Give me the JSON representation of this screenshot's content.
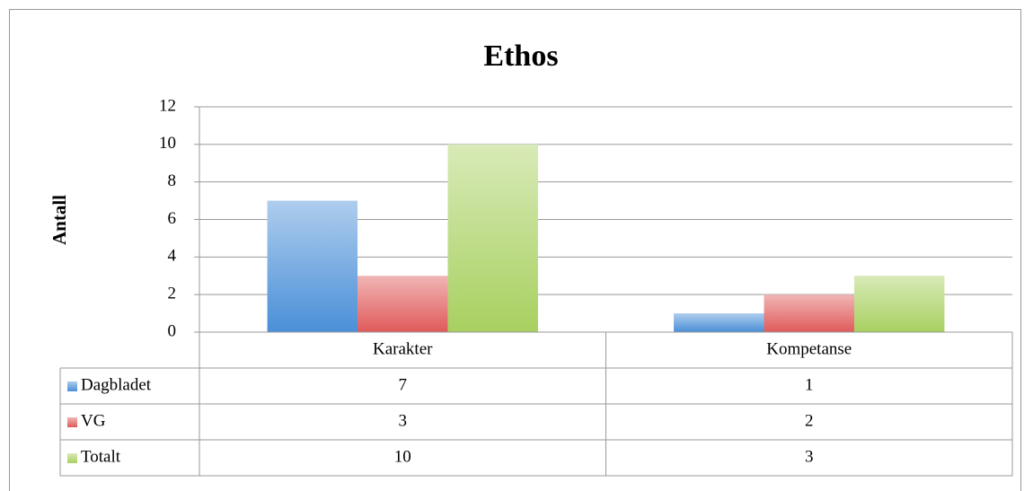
{
  "chart_data": {
    "type": "bar",
    "title": "Ethos",
    "y_label": "Antall",
    "categories": [
      "Karakter",
      "Kompetanse"
    ],
    "series": [
      {
        "name": "Dagbladet",
        "color": "#4a8fd8",
        "values": [
          7,
          1
        ]
      },
      {
        "name": "VG",
        "color": "#e05a5a",
        "values": [
          3,
          2
        ]
      },
      {
        "name": "Totalt",
        "color": "#a8d060",
        "values": [
          10,
          3
        ]
      }
    ],
    "ylim": [
      0,
      12
    ],
    "yticks": [
      0,
      2,
      4,
      6,
      8,
      10,
      12
    ],
    "grid": true,
    "data_table": true
  }
}
